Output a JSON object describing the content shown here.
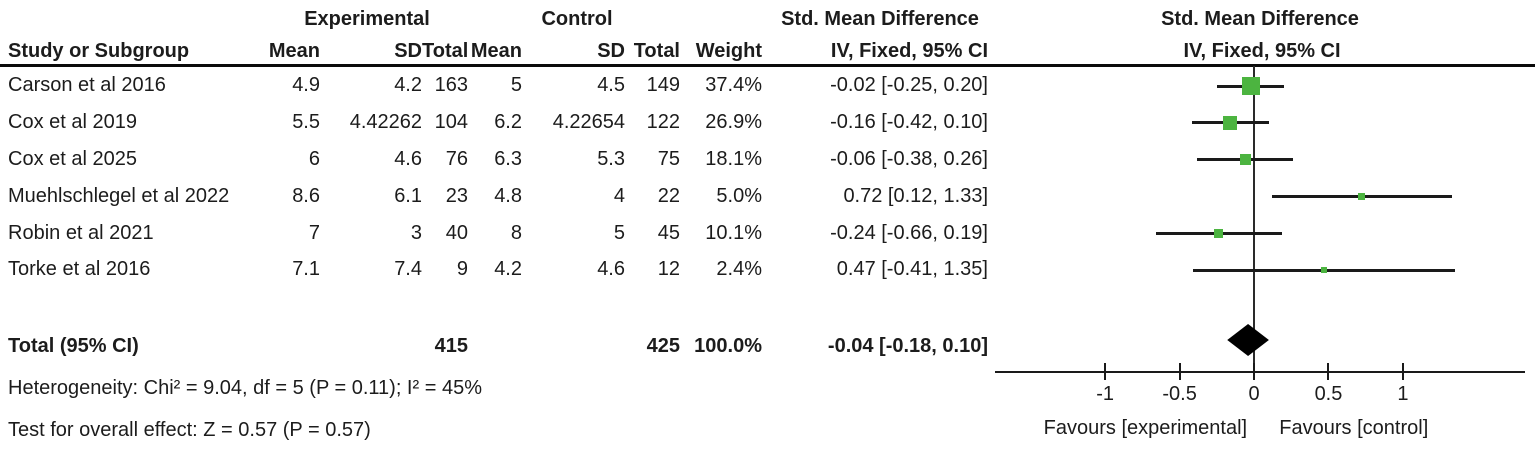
{
  "table": {
    "group_headers": {
      "experimental": "Experimental",
      "control": "Control",
      "smd_text_col": "Std. Mean Difference",
      "smd_plot_col": "Std. Mean Difference"
    },
    "column_headers": {
      "study": "Study or Subgroup",
      "exp_mean": "Mean",
      "exp_sd": "SD",
      "exp_total": "Total",
      "ctrl_mean": "Mean",
      "ctrl_sd": "SD",
      "ctrl_total": "Total",
      "weight": "Weight",
      "iv_text_col": "IV, Fixed, 95% CI",
      "iv_plot_col": "IV, Fixed, 95% CI"
    },
    "total_row": {
      "label": "Total (95% CI)",
      "exp_total": "415",
      "ctrl_total": "425",
      "weight": "100.0%",
      "ci_text": "-0.04 [-0.18, 0.10]"
    },
    "footer": {
      "heterogeneity": "Heterogeneity: Chi² = 9.04, df = 5 (P = 0.11); I² = 45%",
      "overall_effect": "Test for overall effect: Z = 0.57 (P = 0.57)"
    }
  },
  "chart_data": {
    "type": "forest",
    "effect_measure": "Std. Mean Difference, IV, Fixed, 95% CI",
    "studies": [
      {
        "name": "Carson et al 2016",
        "exp_mean": "4.9",
        "exp_sd": "4.2",
        "exp_total": "163",
        "ctrl_mean": "5",
        "ctrl_sd": "4.5",
        "ctrl_total": "149",
        "weight": "37.4%",
        "weight_pct": 37.4,
        "smd": -0.02,
        "ci_low": -0.25,
        "ci_high": 0.2,
        "ci_text": "-0.02 [-0.25, 0.20]"
      },
      {
        "name": "Cox et al 2019",
        "exp_mean": "5.5",
        "exp_sd": "4.42262",
        "exp_total": "104",
        "ctrl_mean": "6.2",
        "ctrl_sd": "4.22654",
        "ctrl_total": "122",
        "weight": "26.9%",
        "weight_pct": 26.9,
        "smd": -0.16,
        "ci_low": -0.42,
        "ci_high": 0.1,
        "ci_text": "-0.16 [-0.42, 0.10]"
      },
      {
        "name": "Cox et al 2025",
        "exp_mean": "6",
        "exp_sd": "4.6",
        "exp_total": "76",
        "ctrl_mean": "6.3",
        "ctrl_sd": "5.3",
        "ctrl_total": "75",
        "weight": "18.1%",
        "weight_pct": 18.1,
        "smd": -0.06,
        "ci_low": -0.38,
        "ci_high": 0.26,
        "ci_text": "-0.06 [-0.38, 0.26]"
      },
      {
        "name": "Muehlschlegel et al 2022",
        "exp_mean": "8.6",
        "exp_sd": "6.1",
        "exp_total": "23",
        "ctrl_mean": "4.8",
        "ctrl_sd": "4",
        "ctrl_total": "22",
        "weight": "5.0%",
        "weight_pct": 5.0,
        "smd": 0.72,
        "ci_low": 0.12,
        "ci_high": 1.33,
        "ci_text": "0.72 [0.12, 1.33]"
      },
      {
        "name": "Robin et al 2021",
        "exp_mean": "7",
        "exp_sd": "3",
        "exp_total": "40",
        "ctrl_mean": "8",
        "ctrl_sd": "5",
        "ctrl_total": "45",
        "weight": "10.1%",
        "weight_pct": 10.1,
        "smd": -0.24,
        "ci_low": -0.66,
        "ci_high": 0.19,
        "ci_text": "-0.24 [-0.66, 0.19]"
      },
      {
        "name": "Torke et al 2016",
        "exp_mean": "7.1",
        "exp_sd": "7.4",
        "exp_total": "9",
        "ctrl_mean": "4.2",
        "ctrl_sd": "4.6",
        "ctrl_total": "12",
        "weight": "2.4%",
        "weight_pct": 2.4,
        "smd": 0.47,
        "ci_low": -0.41,
        "ci_high": 1.35,
        "ci_text": "0.47 [-0.41, 1.35]"
      }
    ],
    "total": {
      "smd": -0.04,
      "ci_low": -0.18,
      "ci_high": 0.1
    },
    "axis": {
      "ticks": [
        {
          "v": -1,
          "label": "-1"
        },
        {
          "v": -0.5,
          "label": "-0.5"
        },
        {
          "v": 0,
          "label": "0"
        },
        {
          "v": 0.5,
          "label": "0.5"
        },
        {
          "v": 1,
          "label": "1"
        }
      ],
      "xmin": -1.74,
      "xmax": 1.82
    },
    "favours_left": "Favours [experimental]",
    "favours_right": "Favours [control]",
    "marker_color": "#4cb440",
    "diamond_color": "#000000"
  }
}
